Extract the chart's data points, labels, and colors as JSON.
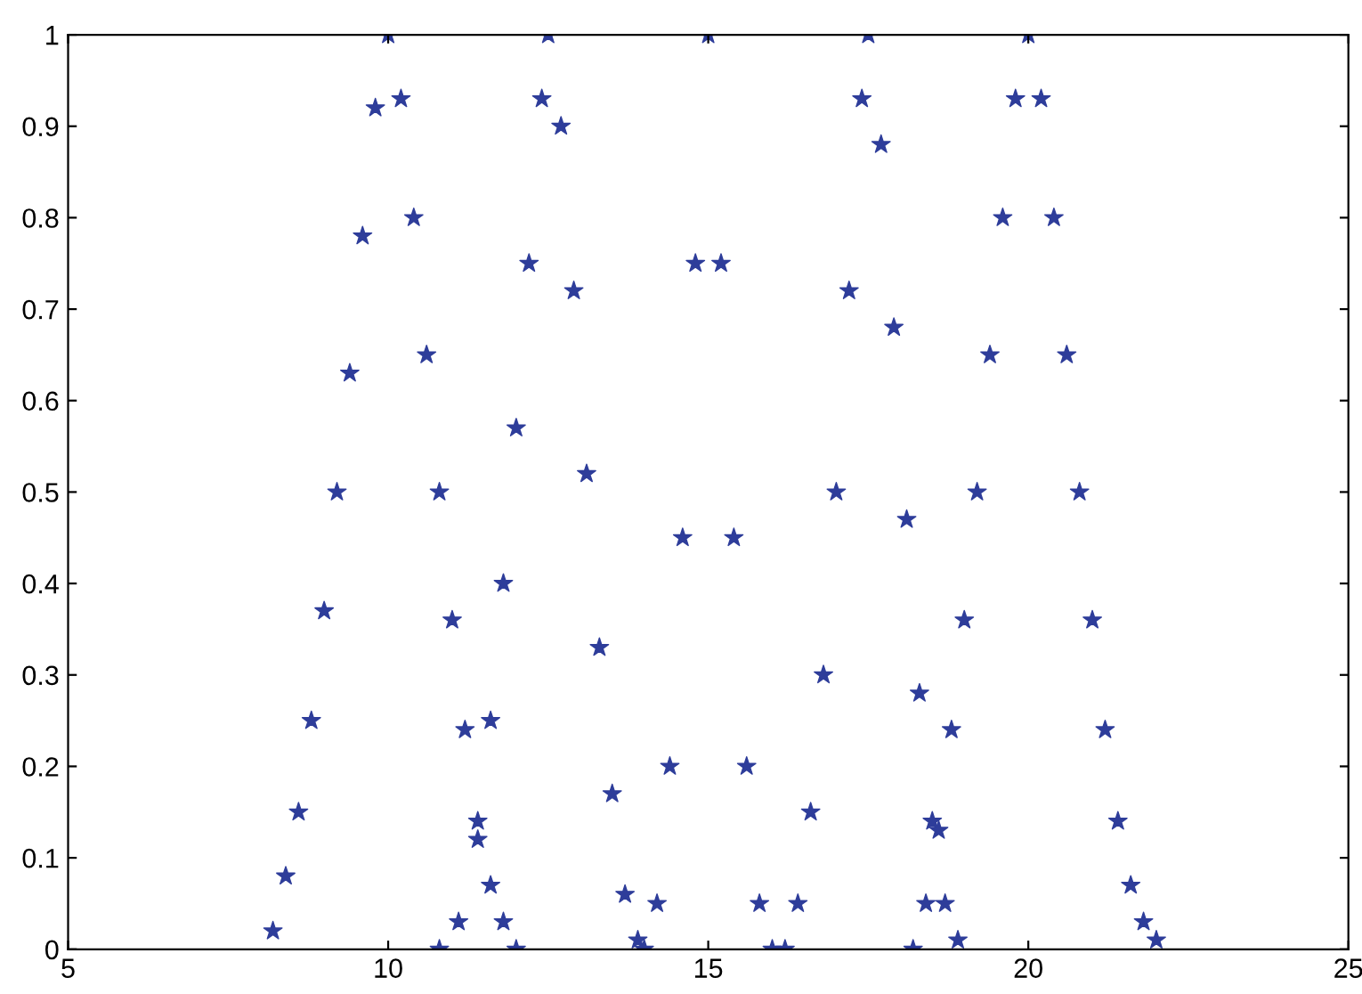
{
  "chart_data": {
    "type": "scatter",
    "marker": "star",
    "grid": false,
    "xlim": [
      5,
      25
    ],
    "xticks": [
      5,
      10,
      15,
      20,
      25
    ],
    "ylim": [
      0,
      1
    ],
    "yticks": [
      0,
      0.1,
      0.2,
      0.3,
      0.4,
      0.5,
      0.6,
      0.7,
      0.8,
      0.9,
      1
    ],
    "series": [
      {
        "color": "#2e3d9a",
        "x": [
          8.2,
          8.4,
          8.6,
          8.8,
          9.0,
          9.2,
          9.4,
          9.6,
          9.8,
          10.0,
          10.2,
          10.4,
          10.6,
          10.8,
          11.0,
          11.2,
          11.4,
          11.6,
          11.8,
          12.0,
          10.8,
          11.1,
          11.4,
          11.6,
          11.8,
          12.0,
          12.2,
          12.4,
          12.5,
          12.7,
          12.9,
          13.1,
          13.3,
          13.5,
          13.7,
          13.9,
          14.0,
          14.2,
          14.4,
          14.6,
          14.8,
          15.0,
          15.2,
          15.4,
          15.6,
          15.8,
          16.0,
          16.2,
          16.4,
          16.6,
          16.8,
          17.0,
          17.2,
          17.4,
          17.5,
          17.7,
          17.9,
          18.1,
          18.3,
          18.5,
          18.7,
          18.9,
          18.2,
          18.4,
          18.6,
          18.8,
          19.0,
          19.2,
          19.4,
          19.6,
          19.8,
          20.0,
          20.2,
          20.4,
          20.6,
          20.8,
          21.0,
          21.2,
          21.4,
          21.6,
          21.8,
          22.0
        ],
        "values": [
          0.02,
          0.08,
          0.15,
          0.25,
          0.37,
          0.5,
          0.63,
          0.78,
          0.92,
          1.0,
          0.93,
          0.8,
          0.65,
          0.5,
          0.36,
          0.24,
          0.14,
          0.07,
          0.03,
          0.0,
          0.0,
          0.03,
          0.12,
          0.25,
          0.4,
          0.57,
          0.75,
          0.93,
          1.0,
          0.9,
          0.72,
          0.52,
          0.33,
          0.17,
          0.06,
          0.01,
          0.0,
          0.05,
          0.2,
          0.45,
          0.75,
          1.0,
          0.75,
          0.45,
          0.2,
          0.05,
          0.0,
          0.0,
          0.05,
          0.15,
          0.3,
          0.5,
          0.72,
          0.93,
          1.0,
          0.88,
          0.68,
          0.47,
          0.28,
          0.14,
          0.05,
          0.01,
          0.0,
          0.05,
          0.13,
          0.24,
          0.36,
          0.5,
          0.65,
          0.8,
          0.93,
          1.0,
          0.93,
          0.8,
          0.65,
          0.5,
          0.36,
          0.24,
          0.14,
          0.07,
          0.03,
          0.01
        ]
      }
    ]
  }
}
